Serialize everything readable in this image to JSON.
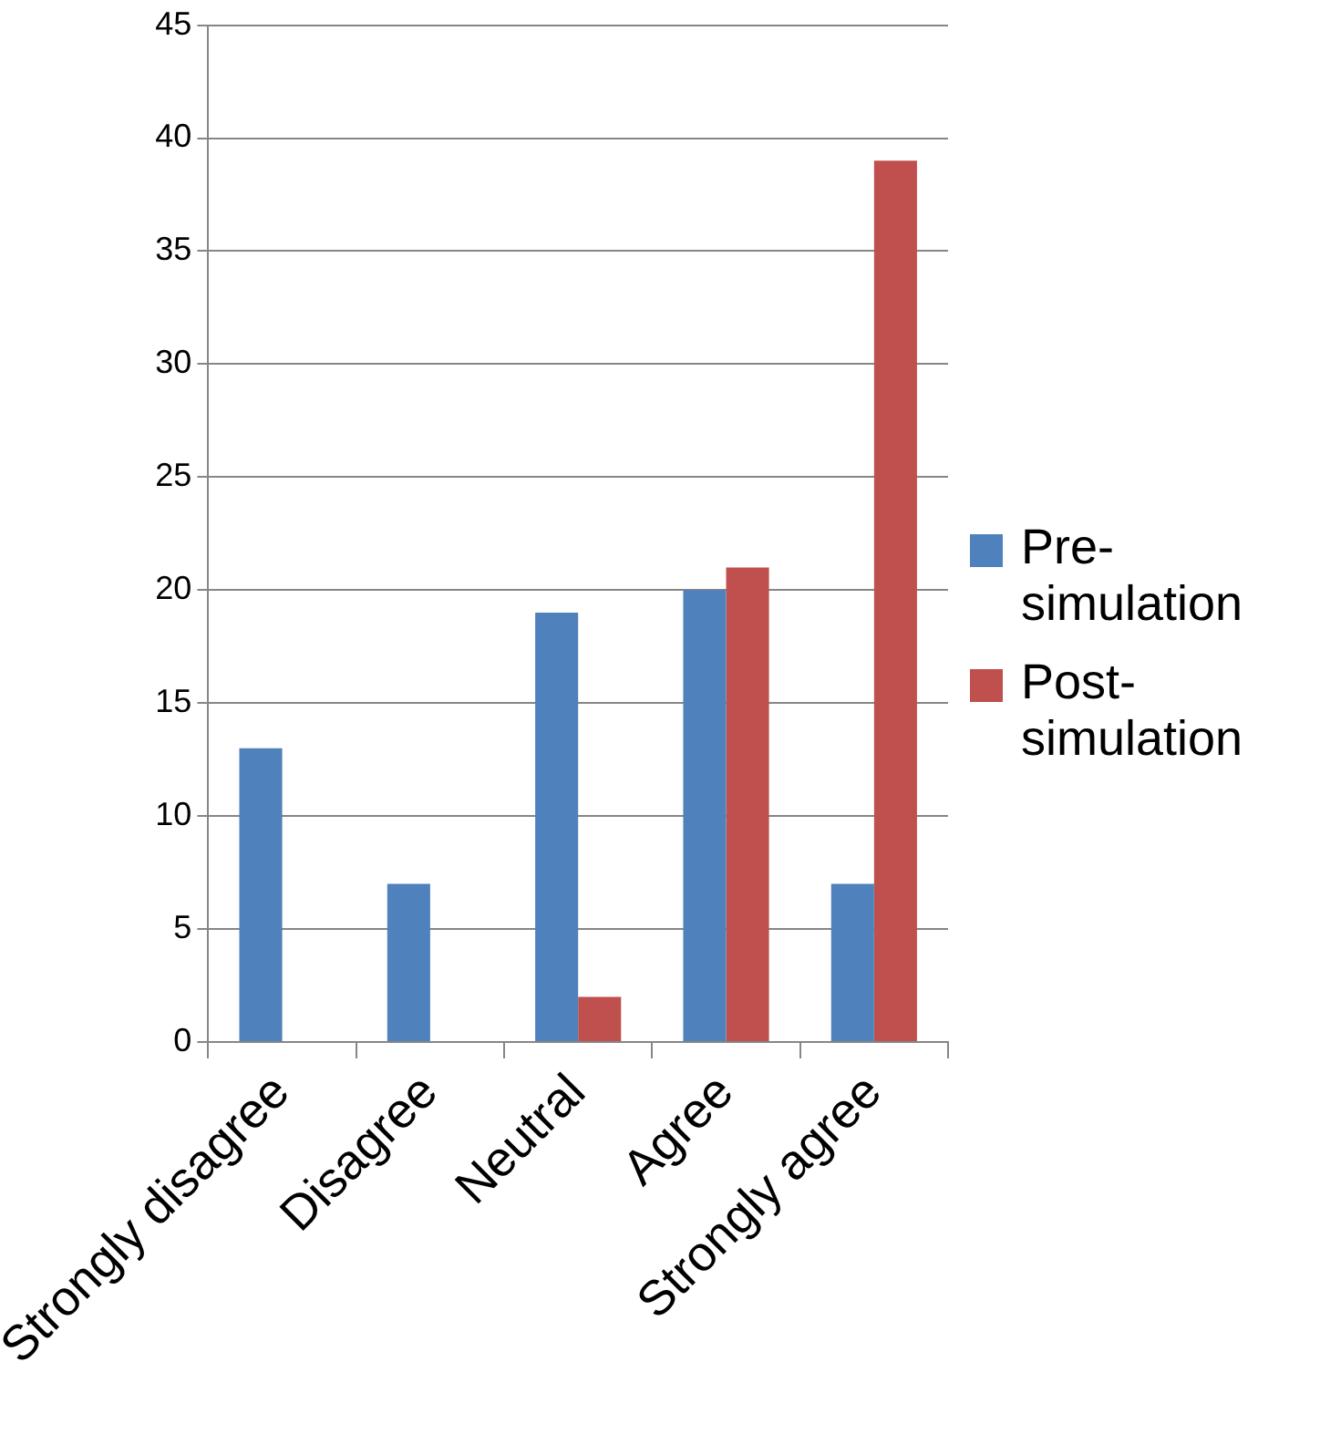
{
  "chart_data": {
    "type": "bar",
    "categories": [
      "Strongly disagree",
      "Disagree",
      "Neutral",
      "Agree",
      "Strongly agree"
    ],
    "series": [
      {
        "name": "Pre-simulation",
        "color": "#4f81bd",
        "values": [
          13,
          7,
          19,
          20,
          7
        ]
      },
      {
        "name": "Post-simulation",
        "color": "#c0504d",
        "values": [
          0,
          0,
          2,
          21,
          39
        ]
      }
    ],
    "ylim": [
      0,
      45
    ],
    "yticks": [
      0,
      5,
      10,
      15,
      20,
      25,
      30,
      35,
      40,
      45
    ],
    "grid": "y",
    "legend": "right"
  }
}
